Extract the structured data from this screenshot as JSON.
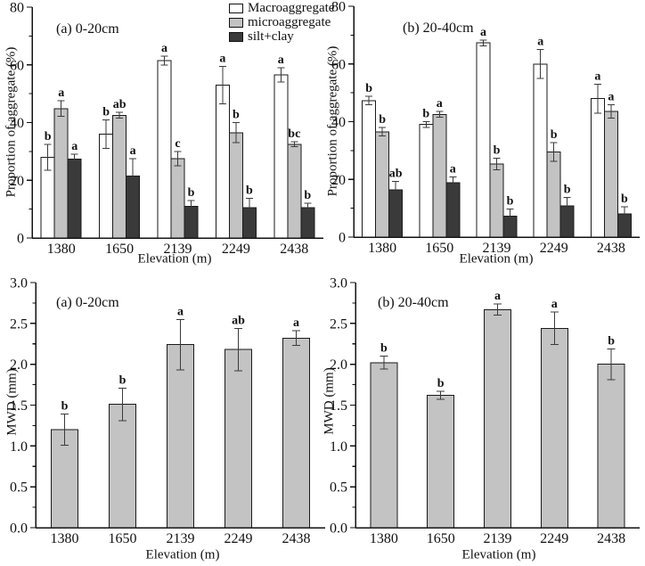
{
  "figure": {
    "background": "#ffffff",
    "text_color": "#111111",
    "axis_color": "#111111",
    "error_bar_color": "#3a3a3a",
    "bar_outline_color": "#1a1a1a"
  },
  "legend": {
    "position": "top center, between upper panels",
    "items": [
      {
        "label": "Macroaggregate",
        "color": "#ffffff"
      },
      {
        "label": "microaggregate",
        "color": "#c3c3c3"
      },
      {
        "label": "silt+clay",
        "color": "#3a3a3a"
      }
    ]
  },
  "chart_data": [
    {
      "id": "aggregate-proportion-0-20cm",
      "type": "bar",
      "title": "(a) 0-20cm",
      "xlabel": "Elevation (m)",
      "ylabel": "Proportion of aggregate (%)",
      "ylim": [
        0,
        80
      ],
      "yticks": [
        "0",
        "20",
        "40",
        "60",
        "80"
      ],
      "ytick_values": [
        0,
        20,
        40,
        60,
        80
      ],
      "yticks_minor": [
        10,
        30,
        50,
        70
      ],
      "grid": "off",
      "categories": [
        "1380",
        "1650",
        "2139",
        "2249",
        "2438"
      ],
      "series": [
        {
          "name": "Macroaggregate",
          "color": "#ffffff",
          "values": [
            28,
            36,
            61.5,
            53,
            56.5
          ],
          "errors": [
            4.5,
            5,
            1.5,
            6.5,
            2.5
          ],
          "letters": [
            "b",
            "b",
            "a",
            "a",
            "a"
          ]
        },
        {
          "name": "microaggregate",
          "color": "#c3c3c3",
          "values": [
            44.8,
            42.5,
            27.5,
            36.5,
            32.5
          ],
          "errors": [
            2.7,
            1,
            2.5,
            3.5,
            0.8
          ],
          "letters": [
            "a",
            "ab",
            "c",
            "b",
            "bc"
          ]
        },
        {
          "name": "silt+clay",
          "color": "#3a3a3a",
          "values": [
            27.3,
            21.5,
            11,
            10.5,
            10.5
          ],
          "errors": [
            1.8,
            6,
            2,
            3.2,
            1.5
          ],
          "letters": [
            "a",
            "a",
            "b",
            "b",
            "b"
          ]
        }
      ]
    },
    {
      "id": "aggregate-proportion-20-40cm",
      "type": "bar",
      "title": "(b) 20-40cm",
      "xlabel": "Elevation (m)",
      "ylabel": "Proportion of aggregate (%)",
      "ylim": [
        0,
        80
      ],
      "yticks": [
        "0",
        "20",
        "40",
        "60",
        "80"
      ],
      "ytick_values": [
        0,
        20,
        40,
        60,
        80
      ],
      "yticks_minor": [
        10,
        30,
        50,
        70
      ],
      "grid": "off",
      "categories": [
        "1380",
        "1650",
        "2139",
        "2249",
        "2438"
      ],
      "series": [
        {
          "name": "Macroaggregate",
          "color": "#ffffff",
          "values": [
            47.3,
            39,
            67.3,
            60,
            48
          ],
          "errors": [
            1.5,
            1,
            1,
            5,
            5
          ],
          "letters": [
            "b",
            "b",
            "a",
            "a",
            "a"
          ]
        },
        {
          "name": "microaggregate",
          "color": "#c3c3c3",
          "values": [
            36.5,
            42.5,
            25.3,
            29.5,
            43.5
          ],
          "errors": [
            1.5,
            1,
            2,
            3.3,
            2.3
          ],
          "letters": [
            "b",
            "a",
            "b",
            "b",
            "a"
          ]
        },
        {
          "name": "silt+clay",
          "color": "#3a3a3a",
          "values": [
            16.3,
            18.8,
            7.3,
            10.8,
            8
          ],
          "errors": [
            3,
            2,
            2.5,
            3,
            2.5
          ],
          "letters": [
            "ab",
            "a",
            "b",
            "b",
            "b"
          ]
        }
      ]
    },
    {
      "id": "mwd-0-20cm",
      "type": "bar",
      "title": "(a) 0-20cm",
      "xlabel": "Elevation (m)",
      "ylabel": "MWD (mm)",
      "ylim": [
        0,
        3.0
      ],
      "yticks": [
        "0.0",
        "0.5",
        "1.0",
        "1.5",
        "2.0",
        "2.5",
        "3.0"
      ],
      "ytick_values": [
        0,
        0.5,
        1,
        1.5,
        2,
        2.5,
        3
      ],
      "yticks_minor": [
        0.25,
        0.75,
        1.25,
        1.75,
        2.25,
        2.75
      ],
      "grid": "off",
      "categories": [
        "1380",
        "1650",
        "2139",
        "2249",
        "2438"
      ],
      "series": [
        {
          "name": "MWD",
          "color": "#c3c3c3",
          "values": [
            1.2,
            1.51,
            2.24,
            2.18,
            2.32
          ],
          "errors": [
            0.19,
            0.2,
            0.31,
            0.26,
            0.09
          ],
          "letters": [
            "b",
            "b",
            "a",
            "ab",
            "a"
          ]
        }
      ]
    },
    {
      "id": "mwd-20-40cm",
      "type": "bar",
      "title": "(b) 20-40cm",
      "xlabel": "Elevation (m)",
      "ylabel": "MWD (mm)",
      "ylim": [
        0,
        3.0
      ],
      "yticks": [
        "0.0",
        "0.5",
        "1.0",
        "1.5",
        "2.0",
        "2.5",
        "3.0"
      ],
      "ytick_values": [
        0,
        0.5,
        1,
        1.5,
        2,
        2.5,
        3
      ],
      "yticks_minor": [
        0.25,
        0.75,
        1.25,
        1.75,
        2.25,
        2.75
      ],
      "grid": "off",
      "categories": [
        "1380",
        "1650",
        "2139",
        "2249",
        "2438"
      ],
      "series": [
        {
          "name": "MWD",
          "color": "#c3c3c3",
          "values": [
            2.02,
            1.62,
            2.67,
            2.44,
            2.0
          ],
          "errors": [
            0.08,
            0.05,
            0.07,
            0.2,
            0.19
          ],
          "letters": [
            "b",
            "b",
            "a",
            "a",
            "b"
          ]
        }
      ]
    }
  ]
}
